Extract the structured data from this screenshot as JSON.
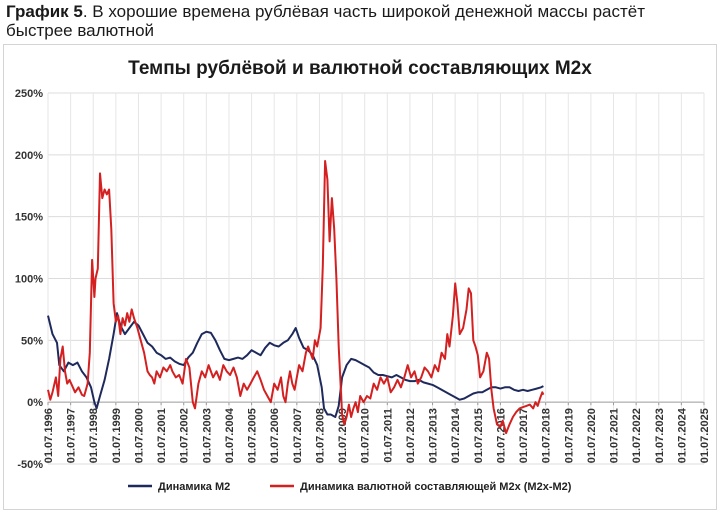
{
  "caption": {
    "label": "График 5",
    "text": ". В хорошие времена рублёвая часть широкой денежной массы растёт быстрее валютной"
  },
  "chart_data": {
    "type": "line",
    "title": "Темпы рублёвой и валютной составляющих М2х",
    "xlabel": "",
    "ylabel": "",
    "ylim": [
      -50,
      250
    ],
    "y_ticks": [
      "250%",
      "200%",
      "150%",
      "100%",
      "50%",
      "0%",
      "-50%"
    ],
    "y_tick_values": [
      250,
      200,
      150,
      100,
      50,
      0,
      -50
    ],
    "x_ticks": [
      "01.07.1996",
      "01.07.1997",
      "01.07.1998",
      "01.07.1999",
      "01.07.2000",
      "01.07.2001",
      "01.07.2002",
      "01.07.2003",
      "01.07.2004",
      "01.07.2005",
      "01.07.2006",
      "01.07.2007",
      "01.07.2008",
      "01.07.2009",
      "01.07.2010",
      "01.07.2011",
      "01.07.2012",
      "01.07.2013",
      "01.07.2014",
      "01.07.2015",
      "01.07.2016",
      "01.07.2017",
      "01.07.2018",
      "01.07.2019",
      "01.07.2020",
      "01.07.2021",
      "01.07.2022",
      "01.07.2023",
      "01.07.2024",
      "01.07.2025"
    ],
    "xlim": [
      1996.5,
      2025.5
    ],
    "grid": true,
    "legend_position": "bottom",
    "series": [
      {
        "name": "Динамика М2",
        "color": "#1f2a5c",
        "points": [
          [
            1996.5,
            70
          ],
          [
            1996.7,
            55
          ],
          [
            1996.9,
            48
          ],
          [
            1997.0,
            30
          ],
          [
            1997.2,
            25
          ],
          [
            1997.4,
            32
          ],
          [
            1997.6,
            30
          ],
          [
            1997.8,
            32
          ],
          [
            1998.0,
            25
          ],
          [
            1998.2,
            20
          ],
          [
            1998.4,
            12
          ],
          [
            1998.55,
            0
          ],
          [
            1998.65,
            -5
          ],
          [
            1998.8,
            5
          ],
          [
            1999.0,
            18
          ],
          [
            1999.2,
            35
          ],
          [
            1999.4,
            55
          ],
          [
            1999.55,
            72
          ],
          [
            1999.7,
            62
          ],
          [
            1999.9,
            55
          ],
          [
            2000.1,
            60
          ],
          [
            2000.3,
            65
          ],
          [
            2000.5,
            62
          ],
          [
            2000.7,
            55
          ],
          [
            2000.9,
            48
          ],
          [
            2001.1,
            45
          ],
          [
            2001.3,
            40
          ],
          [
            2001.5,
            38
          ],
          [
            2001.7,
            35
          ],
          [
            2001.9,
            36
          ],
          [
            2002.1,
            33
          ],
          [
            2002.3,
            31
          ],
          [
            2002.5,
            30
          ],
          [
            2002.7,
            36
          ],
          [
            2002.9,
            40
          ],
          [
            2003.1,
            48
          ],
          [
            2003.3,
            55
          ],
          [
            2003.5,
            57
          ],
          [
            2003.7,
            56
          ],
          [
            2003.9,
            50
          ],
          [
            2004.1,
            42
          ],
          [
            2004.3,
            35
          ],
          [
            2004.5,
            34
          ],
          [
            2004.7,
            35
          ],
          [
            2004.9,
            36
          ],
          [
            2005.1,
            35
          ],
          [
            2005.3,
            38
          ],
          [
            2005.5,
            42
          ],
          [
            2005.7,
            40
          ],
          [
            2005.9,
            38
          ],
          [
            2006.1,
            44
          ],
          [
            2006.3,
            48
          ],
          [
            2006.5,
            46
          ],
          [
            2006.7,
            45
          ],
          [
            2006.9,
            48
          ],
          [
            2007.1,
            50
          ],
          [
            2007.3,
            55
          ],
          [
            2007.45,
            60
          ],
          [
            2007.6,
            52
          ],
          [
            2007.8,
            44
          ],
          [
            2008.0,
            42
          ],
          [
            2008.2,
            38
          ],
          [
            2008.4,
            30
          ],
          [
            2008.6,
            12
          ],
          [
            2008.7,
            -5
          ],
          [
            2008.85,
            -10
          ],
          [
            2009.0,
            -10
          ],
          [
            2009.2,
            -12
          ],
          [
            2009.35,
            -3
          ],
          [
            2009.5,
            20
          ],
          [
            2009.7,
            30
          ],
          [
            2009.9,
            35
          ],
          [
            2010.1,
            34
          ],
          [
            2010.3,
            32
          ],
          [
            2010.5,
            30
          ],
          [
            2010.7,
            28
          ],
          [
            2010.9,
            24
          ],
          [
            2011.1,
            22
          ],
          [
            2011.3,
            22
          ],
          [
            2011.5,
            21
          ],
          [
            2011.7,
            20
          ],
          [
            2011.9,
            22
          ],
          [
            2012.1,
            20
          ],
          [
            2012.3,
            18
          ],
          [
            2012.5,
            17
          ],
          [
            2012.7,
            17
          ],
          [
            2012.9,
            18
          ],
          [
            2013.1,
            16
          ],
          [
            2013.3,
            15
          ],
          [
            2013.5,
            14
          ],
          [
            2013.7,
            12
          ],
          [
            2013.9,
            10
          ],
          [
            2014.1,
            8
          ],
          [
            2014.3,
            6
          ],
          [
            2014.5,
            4
          ],
          [
            2014.7,
            2
          ],
          [
            2014.9,
            3
          ],
          [
            2015.1,
            5
          ],
          [
            2015.3,
            7
          ],
          [
            2015.5,
            8
          ],
          [
            2015.7,
            8
          ],
          [
            2015.9,
            10
          ],
          [
            2016.1,
            12
          ],
          [
            2016.3,
            12
          ],
          [
            2016.5,
            11
          ],
          [
            2016.7,
            12
          ],
          [
            2016.9,
            12
          ],
          [
            2017.1,
            10
          ],
          [
            2017.3,
            9
          ],
          [
            2017.5,
            10
          ],
          [
            2017.7,
            9
          ],
          [
            2017.9,
            10
          ],
          [
            2018.1,
            11
          ],
          [
            2018.3,
            12
          ],
          [
            2018.4,
            13
          ]
        ]
      },
      {
        "name": "Динамика валютной составляющей М2х (М2х-М2)",
        "color": "#d42020",
        "points": [
          [
            1996.5,
            10
          ],
          [
            1996.6,
            2
          ],
          [
            1996.7,
            8
          ],
          [
            1996.85,
            20
          ],
          [
            1996.95,
            5
          ],
          [
            1997.05,
            35
          ],
          [
            1997.15,
            45
          ],
          [
            1997.25,
            25
          ],
          [
            1997.35,
            15
          ],
          [
            1997.45,
            18
          ],
          [
            1997.55,
            14
          ],
          [
            1997.7,
            8
          ],
          [
            1997.85,
            12
          ],
          [
            1998.0,
            6
          ],
          [
            1998.1,
            5
          ],
          [
            1998.25,
            15
          ],
          [
            1998.35,
            40
          ],
          [
            1998.45,
            115
          ],
          [
            1998.55,
            85
          ],
          [
            1998.6,
            100
          ],
          [
            1998.7,
            108
          ],
          [
            1998.8,
            185
          ],
          [
            1998.9,
            165
          ],
          [
            1999.0,
            172
          ],
          [
            1999.1,
            168
          ],
          [
            1999.2,
            172
          ],
          [
            1999.3,
            140
          ],
          [
            1999.4,
            80
          ],
          [
            1999.5,
            65
          ],
          [
            1999.6,
            70
          ],
          [
            1999.7,
            55
          ],
          [
            1999.8,
            68
          ],
          [
            1999.9,
            62
          ],
          [
            2000.0,
            72
          ],
          [
            2000.1,
            65
          ],
          [
            2000.2,
            75
          ],
          [
            2000.3,
            68
          ],
          [
            2000.45,
            60
          ],
          [
            2000.6,
            50
          ],
          [
            2000.75,
            40
          ],
          [
            2000.9,
            25
          ],
          [
            2001.0,
            22
          ],
          [
            2001.1,
            20
          ],
          [
            2001.2,
            15
          ],
          [
            2001.3,
            25
          ],
          [
            2001.45,
            20
          ],
          [
            2001.6,
            28
          ],
          [
            2001.75,
            25
          ],
          [
            2001.9,
            30
          ],
          [
            2002.0,
            25
          ],
          [
            2002.15,
            20
          ],
          [
            2002.3,
            22
          ],
          [
            2002.45,
            15
          ],
          [
            2002.6,
            35
          ],
          [
            2002.75,
            28
          ],
          [
            2002.9,
            0
          ],
          [
            2003.0,
            -5
          ],
          [
            2003.15,
            15
          ],
          [
            2003.3,
            25
          ],
          [
            2003.45,
            20
          ],
          [
            2003.6,
            30
          ],
          [
            2003.8,
            20
          ],
          [
            2003.95,
            25
          ],
          [
            2004.1,
            18
          ],
          [
            2004.25,
            30
          ],
          [
            2004.4,
            25
          ],
          [
            2004.55,
            22
          ],
          [
            2004.7,
            28
          ],
          [
            2004.85,
            20
          ],
          [
            2005.0,
            5
          ],
          [
            2005.15,
            15
          ],
          [
            2005.3,
            10
          ],
          [
            2005.45,
            15
          ],
          [
            2005.6,
            20
          ],
          [
            2005.75,
            25
          ],
          [
            2005.9,
            18
          ],
          [
            2006.05,
            10
          ],
          [
            2006.2,
            5
          ],
          [
            2006.35,
            0
          ],
          [
            2006.5,
            15
          ],
          [
            2006.65,
            10
          ],
          [
            2006.8,
            20
          ],
          [
            2006.9,
            5
          ],
          [
            2007.0,
            0
          ],
          [
            2007.1,
            15
          ],
          [
            2007.2,
            25
          ],
          [
            2007.3,
            15
          ],
          [
            2007.4,
            10
          ],
          [
            2007.5,
            20
          ],
          [
            2007.6,
            30
          ],
          [
            2007.75,
            25
          ],
          [
            2007.9,
            40
          ],
          [
            2008.0,
            45
          ],
          [
            2008.1,
            40
          ],
          [
            2008.2,
            35
          ],
          [
            2008.3,
            50
          ],
          [
            2008.4,
            45
          ],
          [
            2008.55,
            60
          ],
          [
            2008.65,
            110
          ],
          [
            2008.75,
            195
          ],
          [
            2008.85,
            180
          ],
          [
            2008.95,
            130
          ],
          [
            2009.05,
            165
          ],
          [
            2009.15,
            140
          ],
          [
            2009.25,
            100
          ],
          [
            2009.35,
            45
          ],
          [
            2009.5,
            -10
          ],
          [
            2009.6,
            -18
          ],
          [
            2009.7,
            -12
          ],
          [
            2009.8,
            -2
          ],
          [
            2009.9,
            -12
          ],
          [
            2010.0,
            -5
          ],
          [
            2010.1,
            0
          ],
          [
            2010.2,
            -8
          ],
          [
            2010.3,
            5
          ],
          [
            2010.45,
            0
          ],
          [
            2010.6,
            5
          ],
          [
            2010.75,
            3
          ],
          [
            2010.9,
            15
          ],
          [
            2011.05,
            10
          ],
          [
            2011.2,
            20
          ],
          [
            2011.35,
            15
          ],
          [
            2011.5,
            20
          ],
          [
            2011.65,
            8
          ],
          [
            2011.8,
            12
          ],
          [
            2011.95,
            18
          ],
          [
            2012.1,
            12
          ],
          [
            2012.25,
            20
          ],
          [
            2012.4,
            30
          ],
          [
            2012.55,
            20
          ],
          [
            2012.7,
            25
          ],
          [
            2012.85,
            15
          ],
          [
            2013.0,
            20
          ],
          [
            2013.15,
            28
          ],
          [
            2013.3,
            25
          ],
          [
            2013.45,
            20
          ],
          [
            2013.6,
            30
          ],
          [
            2013.75,
            25
          ],
          [
            2013.9,
            40
          ],
          [
            2014.05,
            35
          ],
          [
            2014.15,
            55
          ],
          [
            2014.25,
            45
          ],
          [
            2014.4,
            70
          ],
          [
            2014.5,
            96
          ],
          [
            2014.6,
            80
          ],
          [
            2014.7,
            55
          ],
          [
            2014.85,
            60
          ],
          [
            2015.0,
            75
          ],
          [
            2015.1,
            92
          ],
          [
            2015.2,
            88
          ],
          [
            2015.3,
            50
          ],
          [
            2015.4,
            45
          ],
          [
            2015.5,
            38
          ],
          [
            2015.6,
            20
          ],
          [
            2015.75,
            25
          ],
          [
            2015.9,
            40
          ],
          [
            2016.0,
            35
          ],
          [
            2016.1,
            10
          ],
          [
            2016.2,
            -5
          ],
          [
            2016.35,
            -18
          ],
          [
            2016.5,
            -20
          ],
          [
            2016.6,
            -15
          ],
          [
            2016.75,
            -25
          ],
          [
            2016.9,
            -18
          ],
          [
            2017.05,
            -12
          ],
          [
            2017.2,
            -8
          ],
          [
            2017.35,
            -5
          ],
          [
            2017.5,
            -4
          ],
          [
            2017.65,
            -3
          ],
          [
            2017.8,
            -2
          ],
          [
            2017.95,
            -5
          ],
          [
            2018.05,
            0
          ],
          [
            2018.15,
            -3
          ],
          [
            2018.25,
            3
          ],
          [
            2018.35,
            8
          ],
          [
            2018.4,
            6
          ]
        ]
      }
    ]
  }
}
